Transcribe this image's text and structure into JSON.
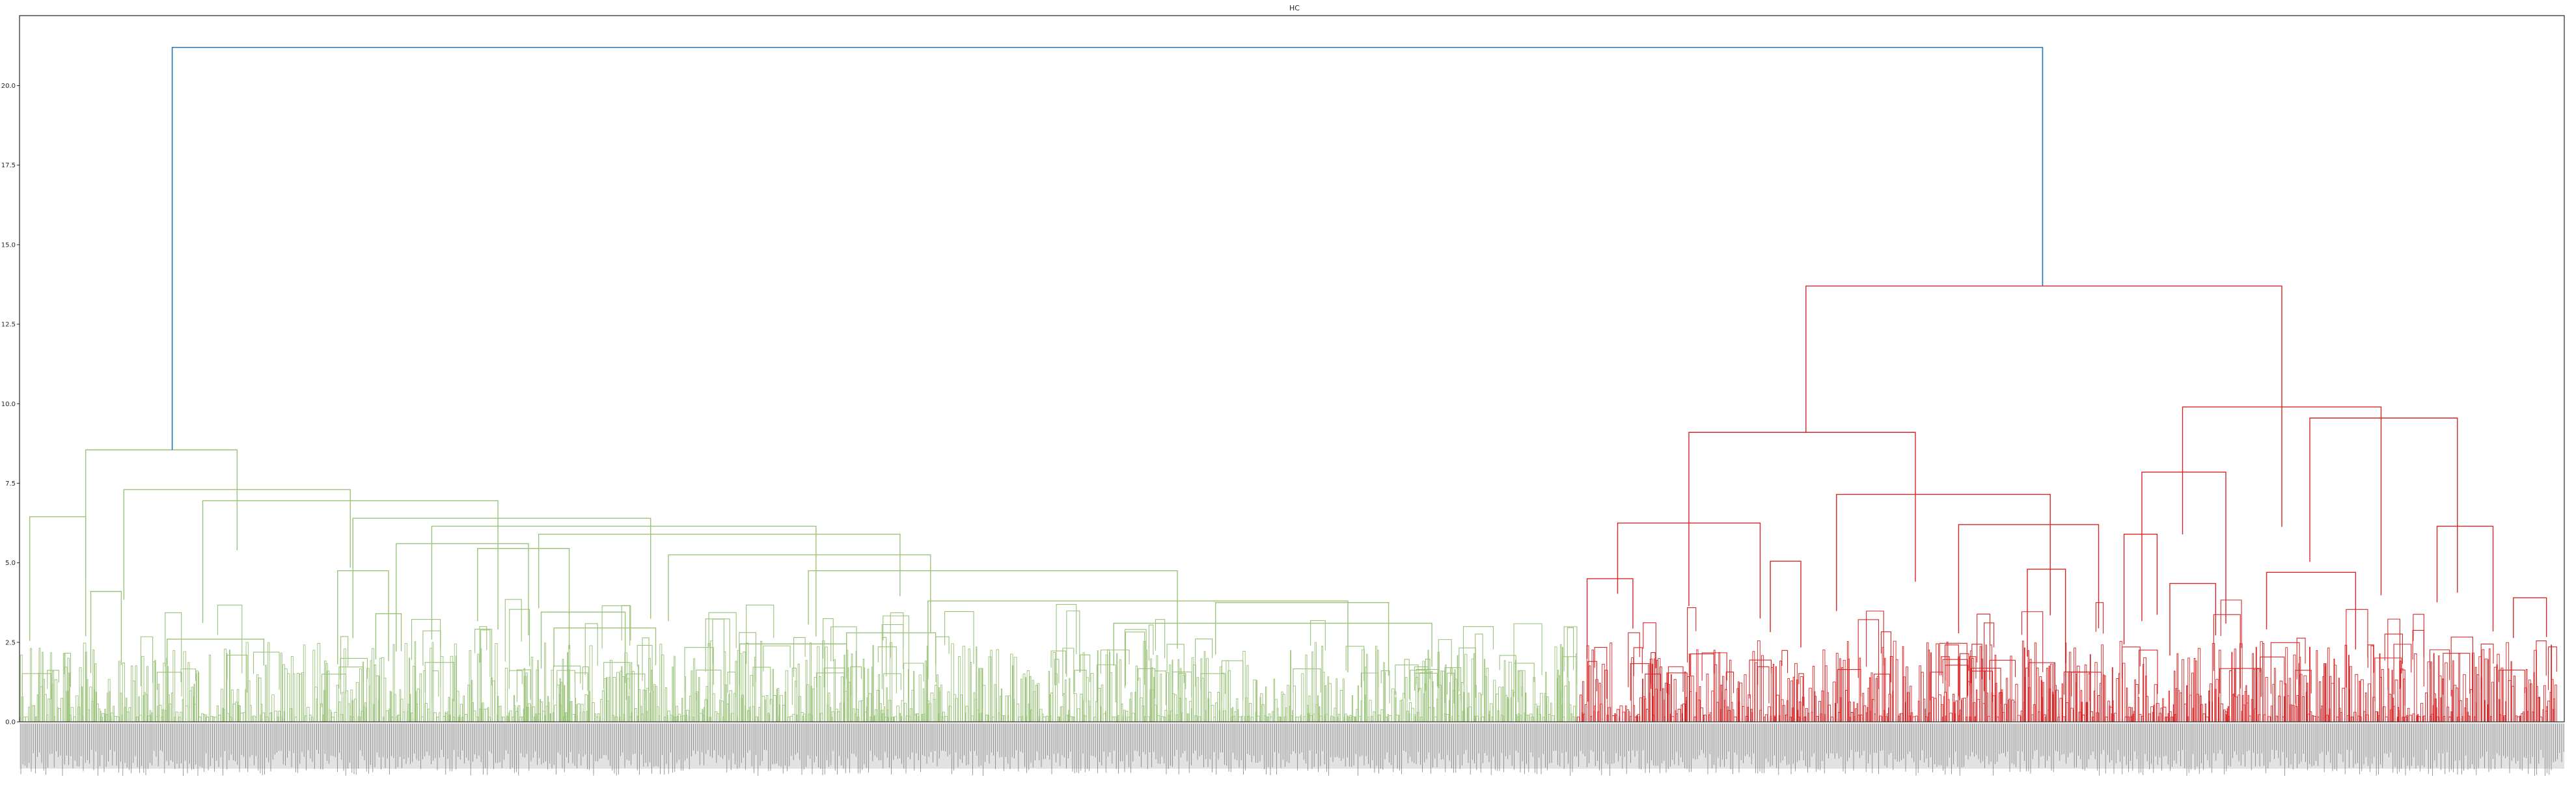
{
  "chart_data": {
    "type": "dendrogram",
    "title": "HC",
    "xlabel": "",
    "ylabel": "",
    "ylim": [
      0,
      22.2
    ],
    "yticks": [
      "0.0",
      "2.5",
      "5.0",
      "7.5",
      "10.0",
      "12.5",
      "15.0",
      "17.5",
      "20.0"
    ],
    "grid": false,
    "colors": {
      "root_link": "#1f77b4",
      "cluster_green": "#9bc37b",
      "cluster_red": "#d62728",
      "axes": "#262626",
      "leaf_labels": "#4a4a4a"
    },
    "clusters": [
      {
        "color": "green",
        "leaf_range": [
          0.0,
          0.612
        ],
        "merge_height": 8.55,
        "major_merges": [
          {
            "height": 8.55,
            "x": [
              0.026,
              0.0855
            ]
          },
          {
            "height": 7.3,
            "x": [
              0.041,
              0.13
            ]
          },
          {
            "height": 6.95,
            "x": [
              0.072,
              0.188
            ]
          },
          {
            "height": 6.45,
            "x": [
              0.004,
              0.026
            ]
          },
          {
            "height": 6.4,
            "x": [
              0.131,
              0.248
            ]
          },
          {
            "height": 6.15,
            "x": [
              0.162,
              0.313
            ]
          },
          {
            "height": 5.9,
            "x": [
              0.204,
              0.346
            ]
          },
          {
            "height": 5.6,
            "x": [
              0.148,
              0.2
            ]
          },
          {
            "height": 5.45,
            "x": [
              0.18,
              0.216
            ]
          },
          {
            "height": 5.25,
            "x": [
              0.255,
              0.358
            ]
          },
          {
            "height": 4.75,
            "x": [
              0.125,
              0.145
            ]
          },
          {
            "height": 4.75,
            "x": [
              0.31,
              0.455
            ]
          },
          {
            "height": 4.1,
            "x": [
              0.028,
              0.04
            ]
          },
          {
            "height": 3.8,
            "x": [
              0.357,
              0.522
            ]
          },
          {
            "height": 3.75,
            "x": [
              0.47,
              0.538
            ]
          },
          {
            "height": 3.45,
            "x": [
              0.205,
              0.238
            ]
          },
          {
            "height": 3.4,
            "x": [
              0.14,
              0.15
            ]
          },
          {
            "height": 3.1,
            "x": [
              0.43,
              0.555
            ]
          },
          {
            "height": 2.95,
            "x": [
              0.21,
              0.25
            ]
          },
          {
            "height": 2.8,
            "x": [
              0.325,
              0.36
            ]
          },
          {
            "height": 2.6,
            "x": [
              0.058,
              0.096
            ]
          },
          {
            "height": 2.45,
            "x": [
              0.283,
              0.325
            ]
          }
        ]
      },
      {
        "color": "red",
        "leaf_range": [
          0.612,
          0.997
        ],
        "merge_height": 13.7,
        "major_merges": [
          {
            "height": 13.7,
            "x": [
              0.702,
              0.889
            ]
          },
          {
            "height": 9.9,
            "x": [
              0.85,
              0.928
            ]
          },
          {
            "height": 9.55,
            "x": [
              0.9,
              0.958
            ]
          },
          {
            "height": 9.1,
            "x": [
              0.656,
              0.745
            ]
          },
          {
            "height": 7.85,
            "x": [
              0.834,
              0.867
            ]
          },
          {
            "height": 7.15,
            "x": [
              0.714,
              0.798
            ]
          },
          {
            "height": 6.25,
            "x": [
              0.628,
              0.684
            ]
          },
          {
            "height": 6.2,
            "x": [
              0.762,
              0.817
            ]
          },
          {
            "height": 6.15,
            "x": [
              0.95,
              0.972
            ]
          },
          {
            "height": 5.9,
            "x": [
              0.827,
              0.84
            ]
          },
          {
            "height": 5.05,
            "x": [
              0.688,
              0.7
            ]
          },
          {
            "height": 4.8,
            "x": [
              0.789,
              0.804
            ]
          },
          {
            "height": 4.7,
            "x": [
              0.883,
              0.918
            ]
          },
          {
            "height": 4.5,
            "x": [
              0.616,
              0.634
            ]
          },
          {
            "height": 4.35,
            "x": [
              0.845,
              0.863
            ]
          },
          {
            "height": 3.9,
            "x": [
              0.98,
              0.993
            ]
          }
        ]
      }
    ],
    "root_merge": {
      "height": 21.2,
      "x": [
        0.06,
        0.795
      ]
    }
  }
}
